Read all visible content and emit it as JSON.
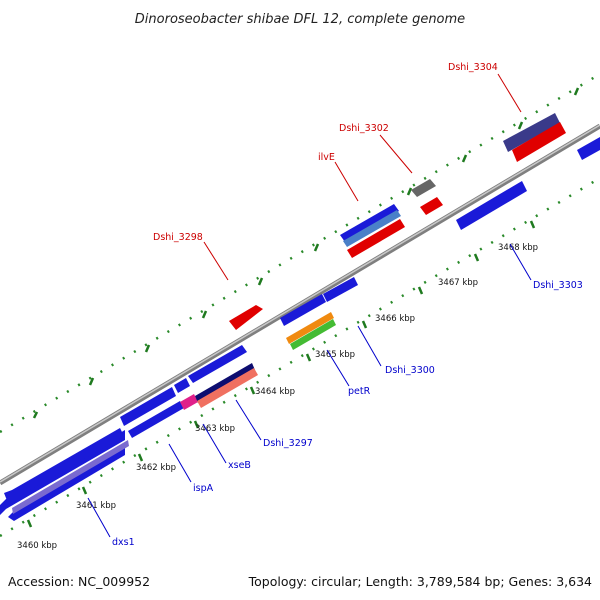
{
  "title": "Dinoroseobacter shibae DFL 12, complete genome",
  "footer": {
    "accession": "Accession: NC_009952",
    "summary": "Topology: circular; Length: 3,789,584 bp; Genes: 3,634"
  },
  "colors": {
    "backbone": "#9a9a9a",
    "tick": "#1f7a1f",
    "forward_label": "#cc0000",
    "reverse_label": "#0000cc"
  },
  "scale_labels": [
    "3460 kbp",
    "3461 kbp",
    "3462 kbp",
    "3463 kbp",
    "3464 kbp",
    "3465 kbp",
    "3466 kbp",
    "3467 kbp",
    "3468 kbp"
  ],
  "gene_labels": {
    "forward": [
      "Dshi_3304",
      "Dshi_3302",
      "ilvE",
      "Dshi_3298"
    ],
    "reverse": [
      "Dshi_3303",
      "Dshi_3300",
      "petR",
      "Dshi_3297",
      "xseB",
      "ispA",
      "dxs1"
    ]
  }
}
